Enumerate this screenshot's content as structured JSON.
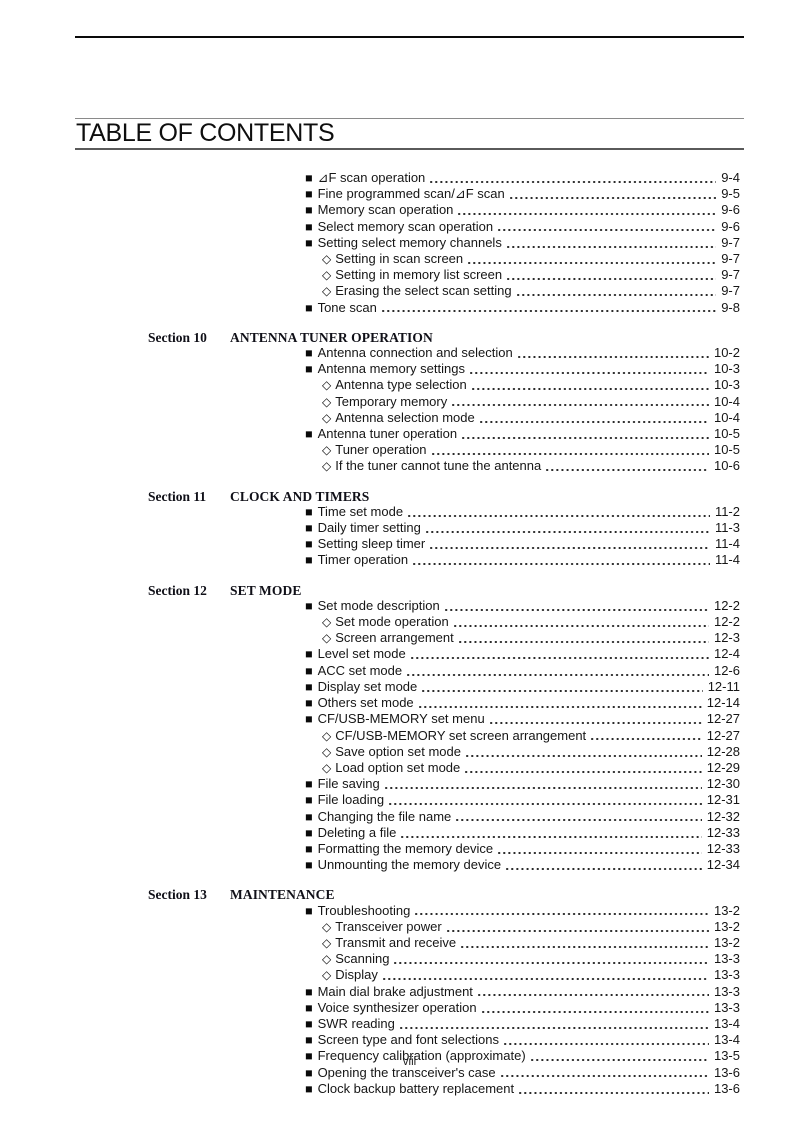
{
  "page": {
    "title": "TABLE OF CONTENTS",
    "footer": "viii"
  },
  "bullets": {
    "main": "■",
    "sub": "◇"
  },
  "sections": [
    {
      "label": "",
      "title": "",
      "entries": [
        {
          "level": "main",
          "text": "⊿F scan operation",
          "page": "9-4"
        },
        {
          "level": "main",
          "text": "Fine programmed scan/⊿F scan",
          "page": "9-5"
        },
        {
          "level": "main",
          "text": "Memory scan operation",
          "page": "9-6"
        },
        {
          "level": "main",
          "text": "Select memory scan operation",
          "page": "9-6"
        },
        {
          "level": "main",
          "text": "Setting select memory channels",
          "page": "9-7"
        },
        {
          "level": "sub",
          "text": "Setting in scan screen",
          "page": "9-7"
        },
        {
          "level": "sub",
          "text": "Setting in memory list screen",
          "page": "9-7"
        },
        {
          "level": "sub",
          "text": "Erasing the select scan setting",
          "page": "9-7"
        },
        {
          "level": "main",
          "text": "Tone scan",
          "page": "9-8"
        }
      ]
    },
    {
      "label": "Section 10",
      "title": "ANTENNA TUNER OPERATION",
      "entries": [
        {
          "level": "main",
          "text": "Antenna connection and selection",
          "page": "10-2"
        },
        {
          "level": "main",
          "text": "Antenna memory settings",
          "page": "10-3"
        },
        {
          "level": "sub",
          "text": "Antenna type selection",
          "page": "10-3"
        },
        {
          "level": "sub",
          "text": "Temporary memory",
          "page": "10-4"
        },
        {
          "level": "sub",
          "text": "Antenna selection mode",
          "page": "10-4"
        },
        {
          "level": "main",
          "text": "Antenna tuner operation",
          "page": "10-5"
        },
        {
          "level": "sub",
          "text": "Tuner operation",
          "page": "10-5"
        },
        {
          "level": "sub",
          "text": "If the tuner cannot tune the antenna",
          "page": "10-6"
        }
      ]
    },
    {
      "label": "Section 11",
      "title": "CLOCK AND TIMERS",
      "entries": [
        {
          "level": "main",
          "text": "Time set mode",
          "page": "11-2"
        },
        {
          "level": "main",
          "text": "Daily timer setting",
          "page": "11-3"
        },
        {
          "level": "main",
          "text": "Setting sleep timer",
          "page": "11-4"
        },
        {
          "level": "main",
          "text": "Timer operation",
          "page": "11-4"
        }
      ]
    },
    {
      "label": "Section 12",
      "title": "SET MODE",
      "entries": [
        {
          "level": "main",
          "text": "Set mode description",
          "page": "12-2"
        },
        {
          "level": "sub",
          "text": "Set mode operation",
          "page": "12-2"
        },
        {
          "level": "sub",
          "text": "Screen arrangement",
          "page": "12-3"
        },
        {
          "level": "main",
          "text": "Level set mode",
          "page": "12-4"
        },
        {
          "level": "main",
          "text": "ACC set mode",
          "page": "12-6"
        },
        {
          "level": "main",
          "text": "Display set mode",
          "page": "12-11"
        },
        {
          "level": "main",
          "text": "Others set mode",
          "page": "12-14"
        },
        {
          "level": "main",
          "text": "CF/USB-MEMORY set menu",
          "page": "12-27"
        },
        {
          "level": "sub",
          "text": "CF/USB-MEMORY set screen arrangement",
          "page": "12-27"
        },
        {
          "level": "sub",
          "text": "Save option set mode",
          "page": "12-28"
        },
        {
          "level": "sub",
          "text": "Load option set mode",
          "page": "12-29"
        },
        {
          "level": "main",
          "text": "File saving",
          "page": "12-30"
        },
        {
          "level": "main",
          "text": "File loading",
          "page": "12-31"
        },
        {
          "level": "main",
          "text": "Changing the file name",
          "page": "12-32"
        },
        {
          "level": "main",
          "text": "Deleting a file",
          "page": "12-33"
        },
        {
          "level": "main",
          "text": "Formatting the memory device",
          "page": "12-33"
        },
        {
          "level": "main",
          "text": "Unmounting the memory device",
          "page": "12-34"
        }
      ]
    },
    {
      "label": "Section 13",
      "title": "MAINTENANCE",
      "entries": [
        {
          "level": "main",
          "text": "Troubleshooting",
          "page": "13-2"
        },
        {
          "level": "sub",
          "text": "Transceiver power",
          "page": "13-2"
        },
        {
          "level": "sub",
          "text": "Transmit and receive",
          "page": "13-2"
        },
        {
          "level": "sub",
          "text": "Scanning",
          "page": "13-3"
        },
        {
          "level": "sub",
          "text": "Display",
          "page": "13-3"
        },
        {
          "level": "main",
          "text": "Main dial brake adjustment",
          "page": "13-3"
        },
        {
          "level": "main",
          "text": "Voice synthesizer operation",
          "page": "13-3"
        },
        {
          "level": "main",
          "text": "SWR reading",
          "page": "13-4"
        },
        {
          "level": "main",
          "text": "Screen type and font selections",
          "page": "13-4"
        },
        {
          "level": "main",
          "text": "Frequency calibration (approximate)",
          "page": "13-5"
        },
        {
          "level": "main",
          "text": "Opening the transceiver's case",
          "page": "13-6"
        },
        {
          "level": "main",
          "text": "Clock backup battery replacement",
          "page": "13-6"
        }
      ]
    }
  ]
}
